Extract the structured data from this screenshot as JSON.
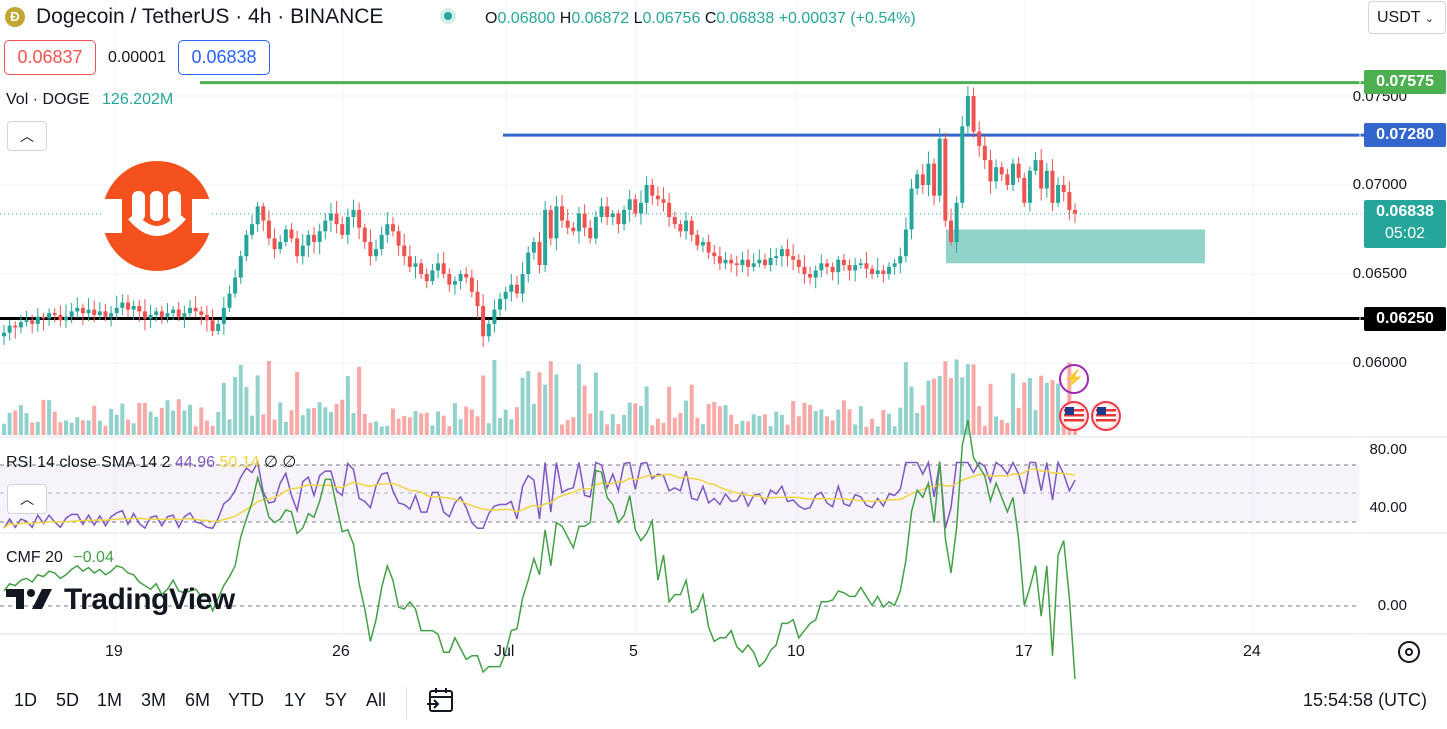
{
  "header": {
    "title": "Dogecoin / TetherUS · 4h · BINANCE",
    "coin_icon": "dogecoin-icon",
    "ohlc": {
      "o_label": "O",
      "o": "0.06800",
      "h_label": "H",
      "h": "0.06872",
      "l_label": "L",
      "l": "0.06756",
      "c_label": "C",
      "c": "0.06838",
      "change": "+0.00037 (+0.54%)"
    },
    "sell_price": "0.06837",
    "spread": "0.00001",
    "buy_price": "0.06838",
    "currency": "USDT"
  },
  "volume": {
    "label": "Vol · DOGE",
    "value": "126.202M"
  },
  "price_axis": {
    "ticks": [
      "0.07500",
      "0.07000",
      "0.06500",
      "0.06000"
    ],
    "tags": {
      "green": "0.07575",
      "blue": "0.07280",
      "current": "0.06838",
      "countdown": "05:02",
      "black": "0.06250"
    }
  },
  "rsi": {
    "label": "RSI 14 close SMA 14 2",
    "value": "44.96",
    "sma": "50.14",
    "extra1": "∅",
    "extra2": "∅",
    "ticks": [
      "80.00",
      "40.00"
    ]
  },
  "cmf": {
    "label": "CMF 20",
    "value": "−0.04",
    "ticks": [
      "0.00"
    ]
  },
  "time_axis": [
    "19",
    "26",
    "Jul",
    "5",
    "10",
    "17",
    "24"
  ],
  "timeframes": [
    "1D",
    "5D",
    "1M",
    "3M",
    "6M",
    "YTD",
    "1Y",
    "5Y",
    "All"
  ],
  "clock": "15:54:58 (UTC)",
  "watermark": "TradingView",
  "colors": {
    "up": "#26a69a",
    "down": "#ef5350",
    "green_line": "#4caf50",
    "blue_line": "#3366cc",
    "black_line": "#000000",
    "zone": "#7fcbbf",
    "rsi": "#7e57c2",
    "rsi_sma": "#f0d541",
    "cmf": "#43a047"
  },
  "chart_data": {
    "type": "candlestick",
    "title": "Dogecoin / TetherUS · 4h · BINANCE",
    "ylim": [
      0.0588,
      0.076
    ],
    "levels": {
      "resistance_green": 0.07575,
      "resistance_blue": 0.0728,
      "support_black": 0.0625,
      "current": 0.06838
    },
    "zone": {
      "top": 0.0675,
      "bottom": 0.0656
    },
    "close": [
      0.0617,
      0.0621,
      0.062,
      0.0623,
      0.0624,
      0.0622,
      0.0626,
      0.0625,
      0.0628,
      0.0627,
      0.0624,
      0.0626,
      0.0629,
      0.0631,
      0.0628,
      0.063,
      0.0627,
      0.0629,
      0.0626,
      0.0628,
      0.0631,
      0.0634,
      0.063,
      0.0632,
      0.0629,
      0.0625,
      0.0627,
      0.0629,
      0.0626,
      0.0628,
      0.063,
      0.0626,
      0.0628,
      0.0631,
      0.0629,
      0.0627,
      0.0624,
      0.0618,
      0.0622,
      0.0631,
      0.0639,
      0.0648,
      0.066,
      0.0672,
      0.0678,
      0.0688,
      0.068,
      0.067,
      0.0664,
      0.0668,
      0.0675,
      0.067,
      0.066,
      0.0666,
      0.0672,
      0.0668,
      0.0674,
      0.068,
      0.0684,
      0.0678,
      0.0672,
      0.0682,
      0.0686,
      0.0676,
      0.0668,
      0.066,
      0.0664,
      0.0672,
      0.0678,
      0.0674,
      0.0666,
      0.066,
      0.0654,
      0.0656,
      0.065,
      0.0646,
      0.0652,
      0.0656,
      0.065,
      0.0644,
      0.0646,
      0.065,
      0.0648,
      0.064,
      0.0632,
      0.0615,
      0.0622,
      0.063,
      0.0636,
      0.064,
      0.0644,
      0.0639,
      0.065,
      0.0662,
      0.0668,
      0.0655,
      0.0686,
      0.067,
      0.0688,
      0.068,
      0.0676,
      0.0674,
      0.0684,
      0.0676,
      0.067,
      0.0682,
      0.0688,
      0.0682,
      0.0684,
      0.0678,
      0.0686,
      0.0692,
      0.0684,
      0.069,
      0.07,
      0.0694,
      0.0692,
      0.069,
      0.0682,
      0.0678,
      0.0674,
      0.068,
      0.0672,
      0.0666,
      0.0668,
      0.0662,
      0.066,
      0.0656,
      0.0658,
      0.0656,
      0.0655,
      0.0658,
      0.0654,
      0.0656,
      0.0658,
      0.0655,
      0.0659,
      0.066,
      0.0664,
      0.066,
      0.0658,
      0.0654,
      0.065,
      0.0648,
      0.0652,
      0.0656,
      0.0654,
      0.0651,
      0.0658,
      0.0655,
      0.0652,
      0.0655,
      0.0656,
      0.0653,
      0.065,
      0.0652,
      0.065,
      0.0654,
      0.0656,
      0.066,
      0.0675,
      0.0698,
      0.0706,
      0.07,
      0.0712,
      0.0694,
      0.0726,
      0.068,
      0.0668,
      0.069,
      0.0733,
      0.075,
      0.073,
      0.0722,
      0.0714,
      0.0702,
      0.071,
      0.0706,
      0.07,
      0.0712,
      0.0704,
      0.069,
      0.0708,
      0.0714,
      0.0698,
      0.0708,
      0.069,
      0.07,
      0.0696,
      0.0686,
      0.0684
    ],
    "rsi_note": "RSI 14 oscillates roughly between 35 and 80 (current 44.96, SMA 50.14)",
    "cmf_note": "CMF 20 near zero, current −0.04"
  }
}
